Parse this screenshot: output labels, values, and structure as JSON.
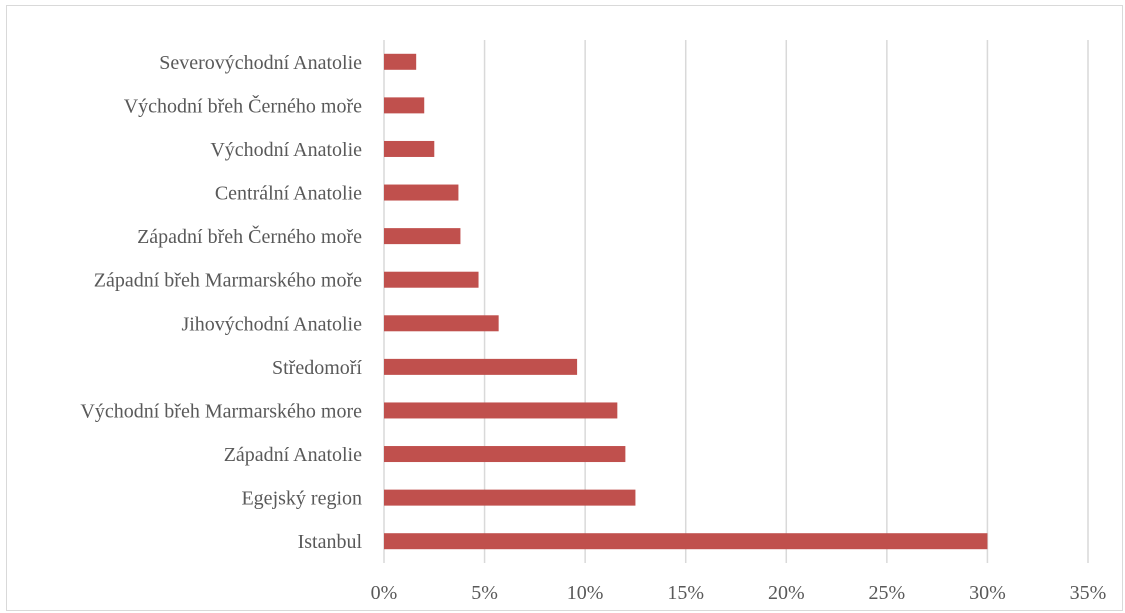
{
  "chart_data": {
    "type": "bar",
    "orientation": "horizontal",
    "title": "",
    "xlabel": "",
    "ylabel": "",
    "categories": [
      "Istanbul",
      "Egejský region",
      "Západní Anatolie",
      "Východní břeh Marmarského more",
      "Středomoří",
      "Jihovýchodní Anatolie",
      "Západní břeh Marmarského moře",
      "Západní břeh Černého moře",
      "Centrální Anatolie",
      "Východní Anatolie",
      "Východní břeh Černého moře",
      "Severovýchodní Anatolie"
    ],
    "values": [
      30.0,
      12.5,
      12.0,
      11.6,
      9.6,
      5.7,
      4.7,
      3.8,
      3.7,
      2.5,
      2.0,
      1.6
    ],
    "xlim": [
      0,
      35
    ],
    "x_ticks": [
      0,
      5,
      10,
      15,
      20,
      25,
      30,
      35
    ],
    "x_tick_labels": [
      "0%",
      "5%",
      "10%",
      "15%",
      "20%",
      "25%",
      "30%",
      "35%"
    ],
    "grid": "vertical",
    "legend": "none",
    "bar_color": "#c0504d",
    "grid_color": "#d9d9d9"
  }
}
